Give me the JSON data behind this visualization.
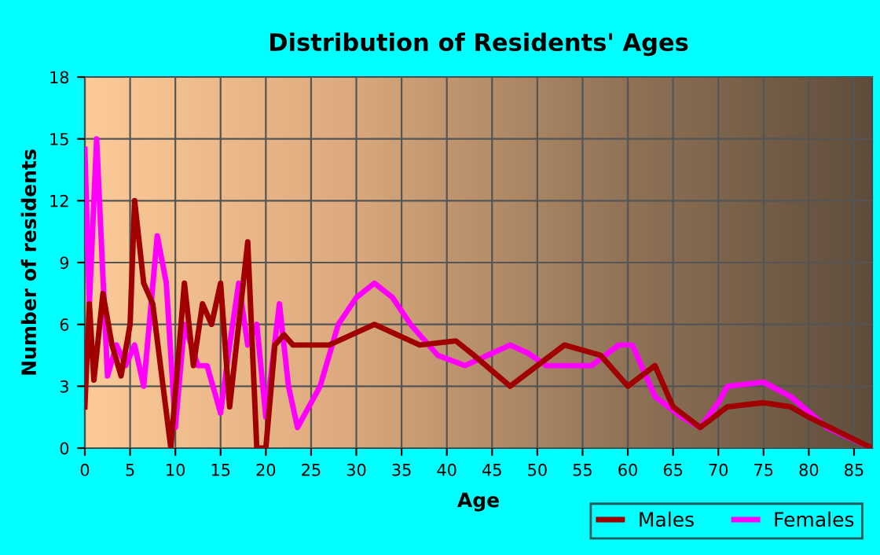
{
  "chart_data": {
    "type": "line",
    "title": "Distribution of Residents' Ages",
    "xlabel": "Age",
    "ylabel": "Number of residents",
    "xlim": [
      0,
      87
    ],
    "xticks": [
      0,
      5,
      10,
      15,
      20,
      25,
      30,
      35,
      40,
      45,
      50,
      55,
      60,
      65,
      70,
      75,
      80,
      85
    ],
    "ylim": [
      0,
      18
    ],
    "yticks": [
      0,
      3,
      6,
      9,
      12,
      15,
      18
    ],
    "grid": true,
    "legend": "bottom right",
    "marker": "none",
    "line_style": "solid",
    "series": [
      {
        "name": "Males",
        "color": "#a00000",
        "x": [
          0,
          0.5,
          1,
          2,
          3,
          4,
          5,
          5.5,
          6.5,
          7.5,
          9.5,
          11,
          12,
          13,
          14,
          15,
          16,
          18,
          19,
          20,
          21,
          22,
          23,
          27,
          32,
          37,
          41,
          43,
          47,
          53,
          57,
          60,
          63,
          65,
          68,
          71,
          75,
          78,
          80,
          87
        ],
        "values": [
          2,
          7,
          3.3,
          7.5,
          5,
          3.5,
          6,
          12,
          8,
          7,
          0,
          8,
          4,
          7,
          6,
          8,
          2,
          10,
          0,
          0,
          5,
          5.5,
          5,
          5,
          6,
          5,
          5.2,
          4.5,
          3,
          5,
          4.5,
          3,
          4,
          2,
          1,
          2,
          2.2,
          2,
          1.5,
          0
        ]
      },
      {
        "name": "Females",
        "color": "#ff00ff",
        "x": [
          0,
          0.5,
          1.3,
          2.5,
          3.5,
          4.5,
          5.5,
          6.5,
          8,
          9,
          10,
          11,
          12.5,
          13.5,
          15,
          16,
          17,
          18,
          19,
          20,
          21.5,
          22.5,
          23.5,
          26,
          28,
          30,
          32,
          34,
          36,
          39,
          42,
          44.5,
          47,
          49,
          51,
          56,
          59,
          60.5,
          63,
          66,
          68,
          70,
          71,
          75,
          78,
          82,
          87
        ],
        "values": [
          14.5,
          7,
          15,
          3.5,
          5,
          4,
          5,
          3,
          10.3,
          8,
          1,
          6,
          4,
          4,
          1.7,
          5,
          8,
          5,
          6,
          1.5,
          7,
          3,
          1,
          3,
          6,
          7.3,
          8,
          7.3,
          6,
          4.5,
          4,
          4.5,
          5,
          4.6,
          4,
          4,
          5,
          5,
          2.5,
          1.5,
          1,
          2.2,
          3,
          3.2,
          2.5,
          1,
          0
        ]
      }
    ]
  }
}
